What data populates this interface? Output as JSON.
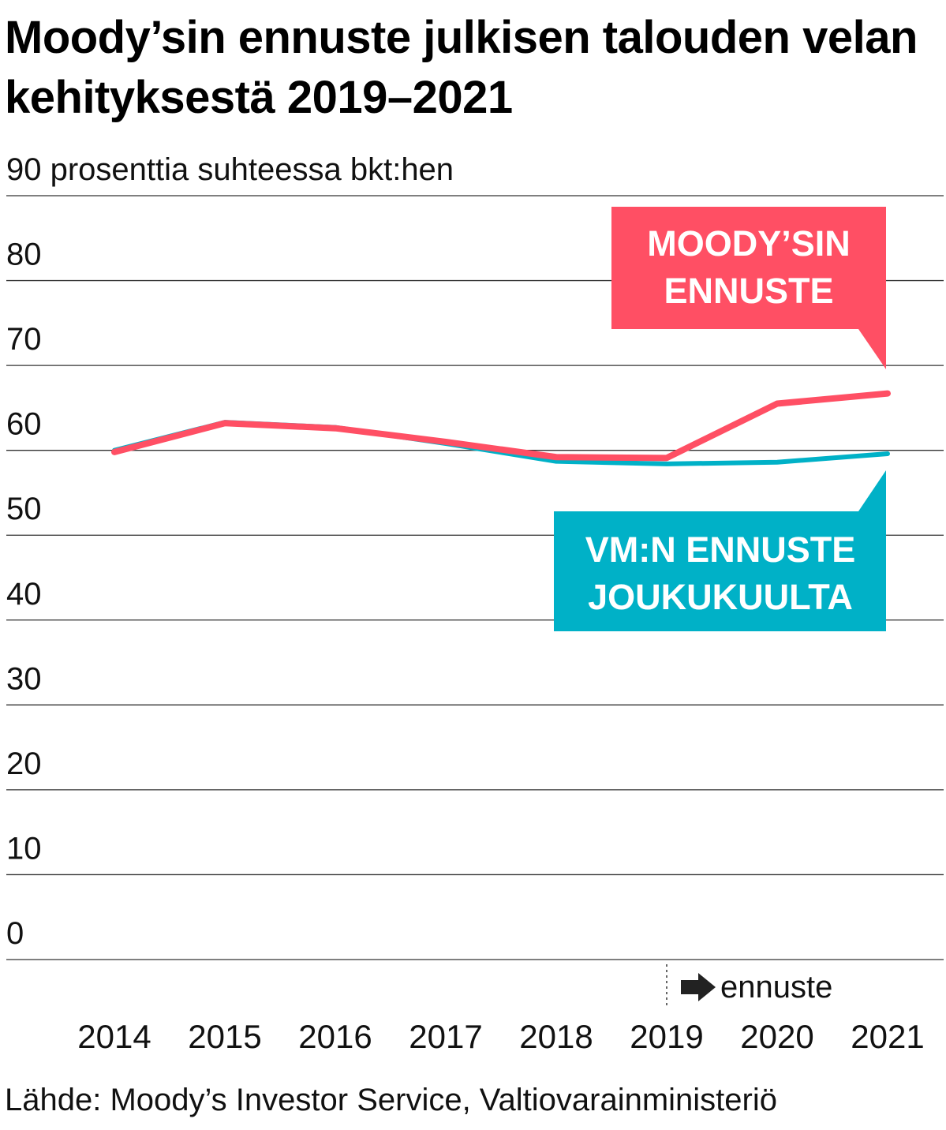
{
  "title": "Moody’sin ennuste julkisen talouden velan kehityksestä 2019–2021",
  "source": "Lähde: Moody’s Investor Service, Valtiovarainministeriö",
  "colors": {
    "moodys": "#ff4f64",
    "vm": "#00b1c7",
    "grid": "#333333"
  },
  "chart_data": {
    "type": "line",
    "ylabel": "prosenttia suhteessa bkt:hen",
    "ylim": [
      0,
      90
    ],
    "yticks": [
      0,
      10,
      20,
      30,
      40,
      50,
      60,
      70,
      80,
      90
    ],
    "y_top_tick_label": "90 prosenttia suhteessa bkt:hen",
    "categories": [
      "2014",
      "2015",
      "2016",
      "2017",
      "2018",
      "2019",
      "2020",
      "2021"
    ],
    "series": [
      {
        "name": "VM:N ENNUSTE JOUKUKUULTA",
        "lines": [
          "VM:N ENNUSTE",
          "JOUKUKUULTA"
        ],
        "color": "#00b1c7",
        "values": [
          60.0,
          63.3,
          62.7,
          60.8,
          58.7,
          58.4,
          58.6,
          59.6
        ]
      },
      {
        "name": "MOODY’SIN ENNUSTE",
        "lines": [
          "MOODY’SIN",
          "ENNUSTE"
        ],
        "color": "#ff4f64",
        "values": [
          59.8,
          63.2,
          62.6,
          61.0,
          59.2,
          59.1,
          65.5,
          66.7
        ]
      }
    ],
    "forecast_start": "2019",
    "forecast_label": "ennuste",
    "grid": true
  }
}
